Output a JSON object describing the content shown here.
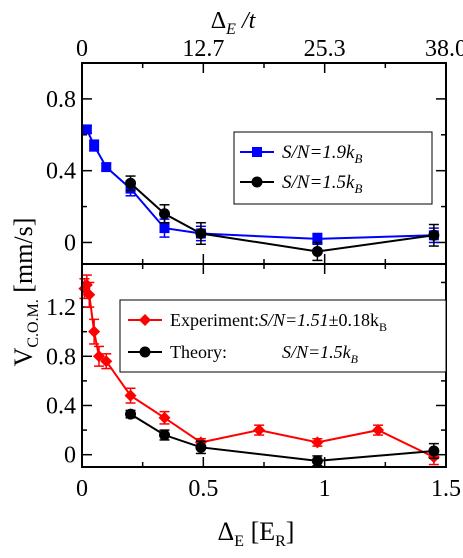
{
  "chart_data": [
    {
      "type": "line",
      "panel": "top",
      "xlabel_bottom_parts": {
        "main": "Δ",
        "sub": "E",
        "unit_open": " [E",
        "unit_sub": "R",
        "unit_close": "]"
      },
      "xlabel_top_parts": {
        "main": "Δ",
        "sub": "E",
        "tail": " /t"
      },
      "ylabel_parts": {
        "main": "V",
        "sub": "C.O.M.",
        "unit": " [mm/s]"
      },
      "xlim": [
        0,
        1.5
      ],
      "ylim": [
        -0.12,
        1.0
      ],
      "x_ticks": [
        0,
        0.5,
        1,
        1.5
      ],
      "y_ticks": [
        0,
        0.4,
        0.8
      ],
      "y_tick_labels": [
        "0",
        "0.4",
        "0.8"
      ],
      "top_x_ticks": [
        0,
        0.5,
        1.0,
        1.5
      ],
      "top_x_tick_labels": [
        "0",
        "12.7",
        "25.3",
        "38.0"
      ],
      "series": [
        {
          "name": "S/N=1.9k_B",
          "legend_main": "S/N=1.9k",
          "legend_sub": "B",
          "color": "#0000ff",
          "marker": "square",
          "x": [
            0.02,
            0.05,
            0.1,
            0.2,
            0.34,
            0.49,
            0.97,
            1.45
          ],
          "y": [
            0.63,
            0.54,
            0.42,
            0.3,
            0.08,
            0.05,
            0.02,
            0.04
          ],
          "err": [
            0.02,
            0.03,
            0.02,
            0.04,
            0.05,
            0.04,
            0.03,
            0.04
          ]
        },
        {
          "name": "S/N=1.5k_B",
          "legend_main": "S/N=1.5k",
          "legend_sub": "B",
          "color": "#000000",
          "marker": "circle",
          "x": [
            0.2,
            0.34,
            0.49,
            0.97,
            1.45
          ],
          "y": [
            0.33,
            0.16,
            0.05,
            -0.05,
            0.04
          ],
          "err": [
            0.04,
            0.05,
            0.06,
            0.05,
            0.06
          ]
        }
      ]
    },
    {
      "type": "line",
      "panel": "bottom",
      "xlim": [
        0,
        1.5
      ],
      "ylim": [
        -0.1,
        1.55
      ],
      "x_ticks": [
        0,
        0.5,
        1,
        1.5
      ],
      "x_tick_labels": [
        "0",
        "0.5",
        "1",
        "1.5"
      ],
      "y_ticks": [
        0,
        0.4,
        0.8,
        1.2
      ],
      "y_tick_labels": [
        "0",
        "0.4",
        "0.8",
        "1.2"
      ],
      "series": [
        {
          "name": "Experiment: S/N=1.51±0.18k_B",
          "legend_prefix": "Experiment:",
          "legend_main": "S/N=1.51",
          "legend_pm": "±0.18k",
          "legend_sub": "B",
          "color": "#ff0000",
          "marker": "diamond",
          "x": [
            0.01,
            0.02,
            0.03,
            0.05,
            0.07,
            0.1,
            0.2,
            0.34,
            0.49,
            0.73,
            0.97,
            1.22,
            1.45
          ],
          "y": [
            1.35,
            1.38,
            1.3,
            1.0,
            0.8,
            0.76,
            0.48,
            0.3,
            0.1,
            0.2,
            0.1,
            0.2,
            -0.02
          ],
          "err": [
            0.08,
            0.08,
            0.1,
            0.1,
            0.08,
            0.06,
            0.06,
            0.05,
            0.03,
            0.04,
            0.03,
            0.04,
            0.06
          ]
        },
        {
          "name": "Theory: S/N=1.5k_B",
          "legend_prefix": "Theory:",
          "legend_main": "S/N=1.5k",
          "legend_sub": "B",
          "color": "#000000",
          "marker": "circle",
          "x": [
            0.2,
            0.34,
            0.49,
            0.97,
            1.45
          ],
          "y": [
            0.33,
            0.16,
            0.06,
            -0.05,
            0.03
          ],
          "err": [
            0.03,
            0.04,
            0.05,
            0.04,
            0.06
          ]
        }
      ]
    }
  ]
}
